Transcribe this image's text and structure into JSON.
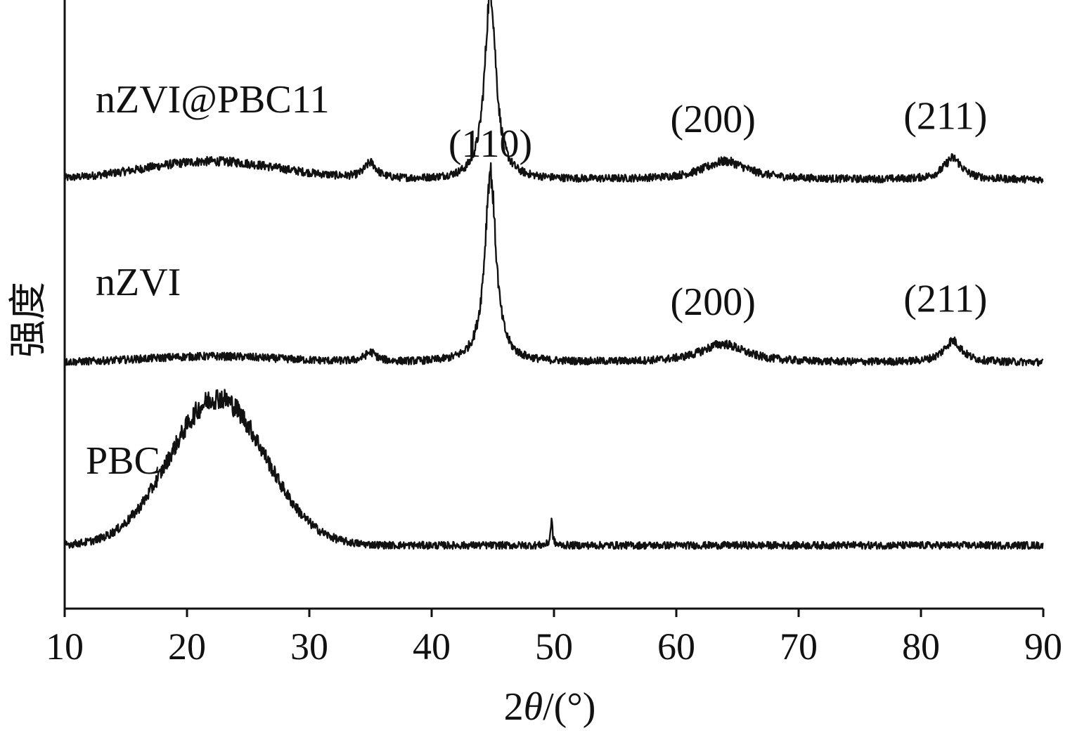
{
  "chart_data": {
    "type": "line",
    "xlabel_prefix": "2",
    "xlabel_theta": "θ",
    "xlabel_suffix": "/(°)",
    "ylabel": "强度",
    "xlim": [
      10,
      90
    ],
    "xticks": [
      "10",
      "20",
      "30",
      "40",
      "50",
      "60",
      "70",
      "80",
      "90"
    ],
    "grid": false,
    "stroke_color": "#111111",
    "series": [
      {
        "name": "nZVI@PBC11",
        "baseline": 1.0,
        "amorphous_hump": {
          "center": 22,
          "width": 8,
          "height": 0.06
        },
        "peaks": [
          {
            "x": 35.0,
            "height": 0.05,
            "width": 0.6
          },
          {
            "x": 44.8,
            "height": 0.62,
            "width": 0.55
          },
          {
            "x": 64.0,
            "height": 0.06,
            "width": 2.2
          },
          {
            "x": 82.6,
            "height": 0.07,
            "width": 0.9
          }
        ],
        "labels": [
          {
            "text": "(110)",
            "x": 44.8
          },
          {
            "text": "(200)",
            "x": 63.0
          },
          {
            "text": "(211)",
            "x": 82.0
          }
        ]
      },
      {
        "name": "nZVI",
        "baseline": 0.0,
        "amorphous_hump": {
          "center": 22,
          "width": 8,
          "height": 0.02
        },
        "peaks": [
          {
            "x": 35.0,
            "height": 0.03,
            "width": 0.6
          },
          {
            "x": 44.8,
            "height": 0.62,
            "width": 0.55
          },
          {
            "x": 63.8,
            "height": 0.06,
            "width": 2.2
          },
          {
            "x": 82.6,
            "height": 0.07,
            "width": 0.9
          }
        ],
        "labels": [
          {
            "text": "(110)",
            "x": 44.8
          },
          {
            "text": "(200)",
            "x": 63.0
          },
          {
            "text": "(211)",
            "x": 82.0
          }
        ]
      },
      {
        "name": "PBC",
        "baseline": -1.0,
        "amorphous_hump": {
          "center": 22.5,
          "width": 5.5,
          "height": 0.48
        },
        "peaks": [
          {
            "x": 49.8,
            "height": 0.08,
            "width": 0.1
          }
        ],
        "labels": []
      }
    ]
  }
}
